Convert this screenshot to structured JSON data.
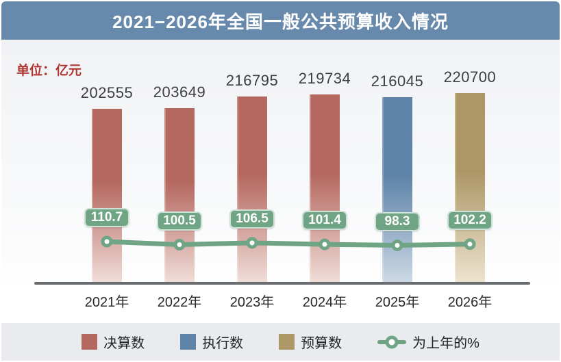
{
  "header": {
    "title": "2021−2026年全国一般公共预算收入情况"
  },
  "unit_label": "单位：亿元",
  "chart_data": {
    "type": "bar+line",
    "title": "2021−2026年全国一般公共预算收入情况",
    "unit": "亿元",
    "categories": [
      "2021年",
      "2022年",
      "2023年",
      "2024年",
      "2025年",
      "2026年"
    ],
    "bar_values": [
      202555,
      203649,
      216795,
      219734,
      216045,
      220700
    ],
    "bar_series_assignment": [
      "决算数",
      "决算数",
      "决算数",
      "决算数",
      "执行数",
      "预算数"
    ],
    "line_series": {
      "name": "为上年的%",
      "values": [
        110.7,
        100.5,
        106.5,
        101.4,
        98.3,
        102.2
      ]
    },
    "ylim": [
      0,
      230000
    ],
    "grid": false,
    "legend_position": "bottom"
  },
  "legend": {
    "items": [
      {
        "label": "决算数",
        "color": "#b4685f"
      },
      {
        "label": "执行数",
        "color": "#5d83a8"
      },
      {
        "label": "预算数",
        "color": "#ae9767"
      }
    ],
    "line_item": {
      "label": "为上年的%",
      "color": "#6fa585"
    }
  },
  "colors": {
    "header_bg": "#6789ab",
    "unit_text": "#ad3833",
    "axis": "#6a6d70",
    "value_text": "#3c3f42",
    "line_green": "#6fa585",
    "series": {
      "决算数": "#b4685f",
      "执行数": "#5d83a8",
      "预算数": "#ae9767"
    },
    "series_light": {
      "决算数": "#f0dcd7",
      "执行数": "#ccd8e4",
      "预算数": "#ece3cf"
    }
  }
}
